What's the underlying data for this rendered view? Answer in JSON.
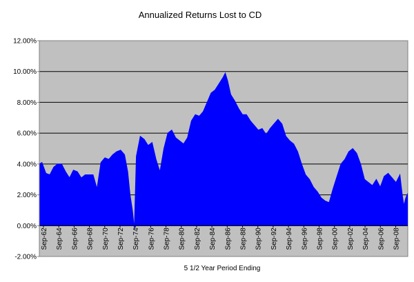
{
  "chart_data": {
    "type": "area",
    "title": "Annualized Returns Lost to CD",
    "xlabel": "5 1/2 Year Period Ending",
    "ylabel": "",
    "ylim": [
      -0.02,
      0.12
    ],
    "y_ticks": [
      -0.02,
      0.0,
      0.02,
      0.04,
      0.06,
      0.08,
      0.1,
      0.12
    ],
    "y_tick_labels": [
      "-2.00%",
      "0.00%",
      "2.00%",
      "4.00%",
      "6.00%",
      "8.00%",
      "10.00%",
      "12.00%"
    ],
    "x_tick_labels": [
      "Sep-62",
      "Sep-64",
      "Sep-66",
      "Sep-68",
      "Sep-70",
      "Sep-72",
      "Sep-74",
      "Sep-76",
      "Sep-78",
      "Sep-80",
      "Sep-82",
      "Sep-84",
      "Sep-86",
      "Sep-88",
      "Sep-90",
      "Sep-92",
      "Sep-94",
      "Sep-96",
      "Sep-98",
      "Sep-00",
      "Sep-02",
      "Sep-04",
      "Sep-06",
      "Sep-08"
    ],
    "x_range": [
      1962.67,
      2009.5
    ],
    "grid": "horizontal",
    "legend": "none",
    "colors": {
      "series": "#0000ff",
      "plot_background": "#c0c0c0",
      "gridline": "#000000"
    },
    "series": [
      {
        "x": [
          1962.67,
          1963.0,
          1963.5,
          1964.0,
          1964.5,
          1965.0,
          1965.5,
          1966.0,
          1966.5,
          1967.0,
          1967.5,
          1968.0,
          1968.5,
          1969.0,
          1969.5,
          1970.0,
          1970.5,
          1971.0,
          1971.5,
          1972.0,
          1972.5,
          1973.0,
          1973.5,
          1973.9,
          1974.2,
          1974.5,
          1974.75,
          1975.0,
          1975.5,
          1976.0,
          1976.5,
          1977.0,
          1977.5,
          1978.0,
          1978.5,
          1979.0,
          1979.5,
          1980.0,
          1980.5,
          1981.0,
          1981.5,
          1982.0,
          1982.5,
          1983.0,
          1983.5,
          1984.0,
          1984.5,
          1985.0,
          1985.5,
          1986.0,
          1986.3,
          1986.6,
          1987.0,
          1987.5,
          1988.0,
          1988.5,
          1989.0,
          1989.5,
          1990.0,
          1990.5,
          1991.0,
          1991.5,
          1992.0,
          1992.5,
          1993.0,
          1993.5,
          1994.0,
          1994.5,
          1995.0,
          1995.5,
          1996.0,
          1996.5,
          1997.0,
          1997.5,
          1998.0,
          1998.5,
          1999.0,
          1999.5,
          2000.0,
          2000.5,
          2001.0,
          2001.5,
          2002.0,
          2002.5,
          2003.0,
          2003.5,
          2004.0,
          2004.5,
          2005.0,
          2005.5,
          2006.0,
          2006.5,
          2007.0,
          2007.5,
          2008.0,
          2008.5,
          2008.8,
          2009.0,
          2009.25,
          2009.5
        ],
        "values": [
          0.04,
          0.041,
          0.034,
          0.033,
          0.038,
          0.04,
          0.04,
          0.035,
          0.031,
          0.036,
          0.035,
          0.031,
          0.033,
          0.033,
          0.033,
          0.024,
          0.041,
          0.044,
          0.043,
          0.046,
          0.048,
          0.049,
          0.046,
          0.035,
          0.02,
          0.01,
          -0.002,
          0.045,
          0.058,
          0.056,
          0.052,
          0.054,
          0.043,
          0.035,
          0.05,
          0.06,
          0.062,
          0.057,
          0.055,
          0.053,
          0.057,
          0.068,
          0.072,
          0.071,
          0.074,
          0.08,
          0.086,
          0.088,
          0.092,
          0.096,
          0.099,
          0.094,
          0.085,
          0.081,
          0.076,
          0.072,
          0.072,
          0.068,
          0.065,
          0.062,
          0.063,
          0.059,
          0.063,
          0.066,
          0.069,
          0.066,
          0.058,
          0.055,
          0.053,
          0.048,
          0.04,
          0.033,
          0.03,
          0.025,
          0.022,
          0.018,
          0.016,
          0.015,
          0.024,
          0.032,
          0.04,
          0.043,
          0.048,
          0.05,
          0.047,
          0.04,
          0.03,
          0.028,
          0.026,
          0.03,
          0.025,
          0.032,
          0.034,
          0.031,
          0.028,
          0.033,
          0.02,
          0.013,
          0.018,
          0.021
        ]
      }
    ]
  }
}
